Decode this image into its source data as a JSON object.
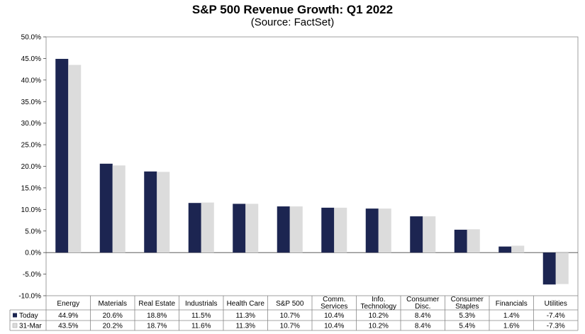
{
  "chart_data": {
    "type": "bar",
    "title": "S&P 500 Revenue Growth: Q1 2022",
    "subtitle": "(Source: FactSet)",
    "xlabel": "",
    "ylabel": "",
    "ylim": [
      -10,
      50
    ],
    "ytick_step": 5,
    "grid": false,
    "legend": "bottom-left (data table)",
    "categories": [
      [
        "Energy"
      ],
      [
        "Materials"
      ],
      [
        "Real Estate"
      ],
      [
        "Industrials"
      ],
      [
        "Health Care"
      ],
      [
        "S&P 500"
      ],
      [
        "Comm.",
        "Services"
      ],
      [
        "Info.",
        "Technology"
      ],
      [
        "Consumer",
        "Disc."
      ],
      [
        "Consumer",
        "Staples"
      ],
      [
        "Financials"
      ],
      [
        "Utilities"
      ]
    ],
    "series": [
      {
        "name": "Today",
        "color": "#1c2551",
        "values": [
          44.9,
          20.6,
          18.8,
          11.5,
          11.3,
          10.7,
          10.4,
          10.2,
          8.4,
          5.3,
          1.4,
          -7.4
        ],
        "labels": [
          "44.9%",
          "20.6%",
          "18.8%",
          "11.5%",
          "11.3%",
          "10.7%",
          "10.4%",
          "10.2%",
          "8.4%",
          "5.3%",
          "1.4%",
          "-7.4%"
        ]
      },
      {
        "name": "31-Mar",
        "color": "#dcdcdc",
        "values": [
          43.5,
          20.2,
          18.7,
          11.6,
          11.3,
          10.7,
          10.4,
          10.2,
          8.4,
          5.4,
          1.6,
          -7.3
        ],
        "labels": [
          "43.5%",
          "20.2%",
          "18.7%",
          "11.6%",
          "11.3%",
          "10.7%",
          "10.4%",
          "10.2%",
          "8.4%",
          "5.4%",
          "1.6%",
          "-7.3%"
        ]
      }
    ]
  }
}
